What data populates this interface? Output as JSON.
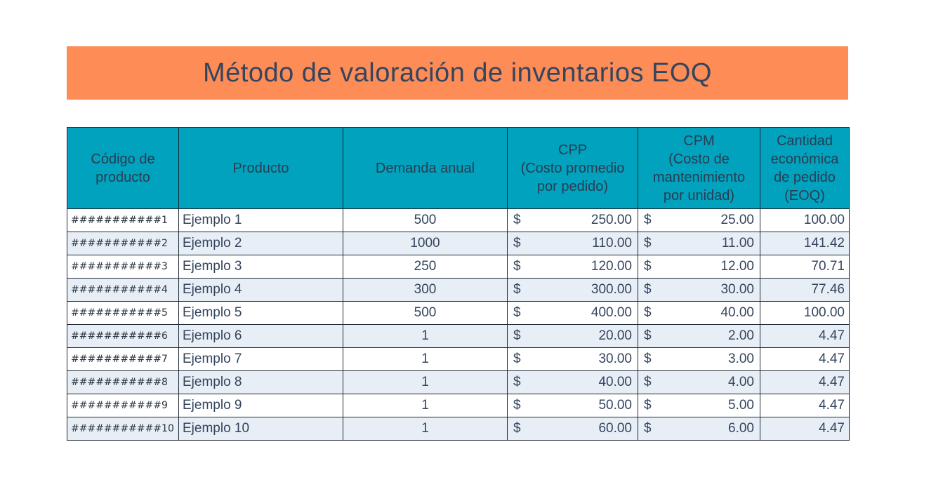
{
  "title": "Método de valoración de inventarios EOQ",
  "colors": {
    "banner": "#fd8c57",
    "header": "#00a2bd",
    "stripe": "#e8eef6"
  },
  "table": {
    "headers": {
      "code": [
        "Código de",
        "producto"
      ],
      "product": [
        "Producto"
      ],
      "demand": [
        "Demanda anual"
      ],
      "cpp": [
        "CPP",
        "(Costo promedio",
        "por pedido)"
      ],
      "cpm": [
        "CPM",
        "(Costo de",
        "mantenimiento",
        "por unidad)"
      ],
      "eoq": [
        "Cantidad",
        "económica",
        "de pedido",
        "(EOQ)"
      ]
    },
    "currency": "$",
    "rows": [
      {
        "code": "###########1",
        "product": "Ejemplo 1",
        "demand": "500",
        "cpp": "250.00",
        "cpm": "25.00",
        "eoq": "100.00"
      },
      {
        "code": "###########2",
        "product": "Ejemplo 2",
        "demand": "1000",
        "cpp": "110.00",
        "cpm": "11.00",
        "eoq": "141.42"
      },
      {
        "code": "###########3",
        "product": "Ejemplo 3",
        "demand": "250",
        "cpp": "120.00",
        "cpm": "12.00",
        "eoq": "70.71"
      },
      {
        "code": "###########4",
        "product": "Ejemplo 4",
        "demand": "300",
        "cpp": "300.00",
        "cpm": "30.00",
        "eoq": "77.46"
      },
      {
        "code": "###########5",
        "product": "Ejemplo 5",
        "demand": "500",
        "cpp": "400.00",
        "cpm": "40.00",
        "eoq": "100.00"
      },
      {
        "code": "###########6",
        "product": "Ejemplo 6",
        "demand": "1",
        "cpp": "20.00",
        "cpm": "2.00",
        "eoq": "4.47"
      },
      {
        "code": "###########7",
        "product": "Ejemplo 7",
        "demand": "1",
        "cpp": "30.00",
        "cpm": "3.00",
        "eoq": "4.47"
      },
      {
        "code": "###########8",
        "product": "Ejemplo 8",
        "demand": "1",
        "cpp": "40.00",
        "cpm": "4.00",
        "eoq": "4.47"
      },
      {
        "code": "###########9",
        "product": "Ejemplo 9",
        "demand": "1",
        "cpp": "50.00",
        "cpm": "5.00",
        "eoq": "4.47"
      },
      {
        "code": "###########10",
        "product": "Ejemplo 10",
        "demand": "1",
        "cpp": "60.00",
        "cpm": "6.00",
        "eoq": "4.47"
      }
    ]
  }
}
